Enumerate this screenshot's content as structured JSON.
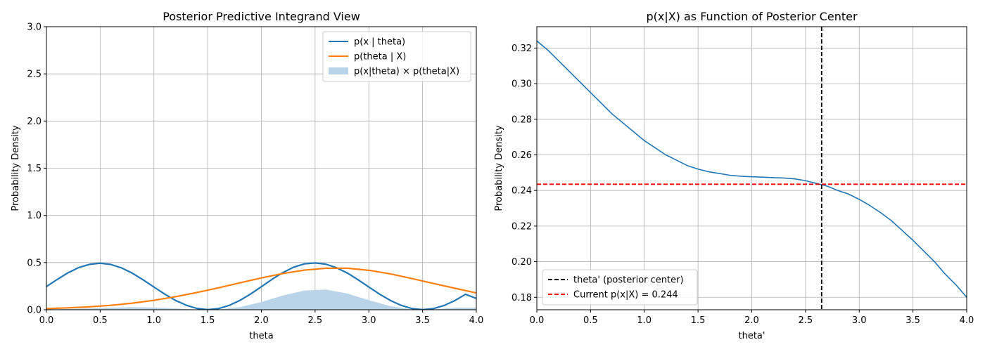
{
  "chart_data": [
    {
      "type": "line",
      "title": "Posterior Predictive Integrand View",
      "xlabel": "theta",
      "ylabel": "Probability Density",
      "xlim": [
        0.0,
        4.0
      ],
      "ylim": [
        0.0,
        3.0
      ],
      "xticks": [
        "0.0",
        "0.5",
        "1.0",
        "1.5",
        "2.0",
        "2.5",
        "3.0",
        "3.5",
        "4.0"
      ],
      "yticks": [
        "0.0",
        "0.5",
        "1.0",
        "1.5",
        "2.0",
        "2.5",
        "3.0"
      ],
      "grid": true,
      "legend_position": "top-right",
      "series": [
        {
          "name": "p(x | theta)",
          "kind": "line",
          "color": "#1f77b4",
          "x": [
            0,
            0.1,
            0.2,
            0.3,
            0.4,
            0.5,
            0.6,
            0.7,
            0.8,
            0.9,
            1.0,
            1.1,
            1.2,
            1.3,
            1.4,
            1.5,
            1.6,
            1.7,
            1.8,
            1.9,
            2.0,
            2.1,
            2.2,
            2.3,
            2.4,
            2.5,
            2.6,
            2.7,
            2.8,
            2.9,
            3.0,
            3.1,
            3.2,
            3.3,
            3.4,
            3.5,
            3.6,
            3.7,
            3.8,
            3.9,
            4.0
          ],
          "y": [
            0.246,
            0.321,
            0.391,
            0.447,
            0.481,
            0.493,
            0.48,
            0.443,
            0.387,
            0.317,
            0.241,
            0.166,
            0.1,
            0.048,
            0.014,
            0.001,
            0.012,
            0.046,
            0.099,
            0.167,
            0.244,
            0.323,
            0.394,
            0.451,
            0.486,
            0.496,
            0.483,
            0.445,
            0.389,
            0.318,
            0.241,
            0.165,
            0.099,
            0.047,
            0.013,
            0.001,
            0.012,
            0.045,
            0.097,
            0.164,
            0.12
          ]
        },
        {
          "name": "p(theta | X)",
          "kind": "line",
          "color": "#ff7f0e",
          "x": [
            0,
            0.2,
            0.4,
            0.6,
            0.8,
            1.0,
            1.2,
            1.4,
            1.6,
            1.8,
            2.0,
            2.2,
            2.4,
            2.6,
            2.8,
            3.0,
            3.2,
            3.4,
            3.6,
            3.8,
            4.0
          ],
          "y": [
            0.012,
            0.02,
            0.031,
            0.047,
            0.07,
            0.1,
            0.138,
            0.183,
            0.232,
            0.285,
            0.337,
            0.384,
            0.42,
            0.44,
            0.44,
            0.418,
            0.38,
            0.331,
            0.279,
            0.228,
            0.178
          ]
        },
        {
          "name": "p(x|theta) × p(theta|X)",
          "kind": "area",
          "color": "#b9d4e9",
          "x": [
            0,
            0.2,
            0.4,
            0.6,
            0.8,
            1.0,
            1.2,
            1.4,
            1.6,
            1.8,
            2.0,
            2.2,
            2.4,
            2.6,
            2.8,
            3.0,
            3.2,
            3.4,
            3.6,
            3.8,
            4.0
          ],
          "y": [
            0.003,
            0.008,
            0.015,
            0.022,
            0.027,
            0.024,
            0.014,
            0.003,
            0.003,
            0.028,
            0.082,
            0.151,
            0.204,
            0.214,
            0.172,
            0.101,
            0.038,
            0.004,
            0.003,
            0.022,
            0.021
          ]
        }
      ]
    },
    {
      "type": "line",
      "title": "p(x|X) as Function of Posterior Center",
      "xlabel": "theta'",
      "ylabel": "Probability Density",
      "xlim": [
        0.0,
        4.0
      ],
      "ylim": [
        0.173,
        0.332
      ],
      "xticks": [
        "0.0",
        "0.5",
        "1.0",
        "1.5",
        "2.0",
        "2.5",
        "3.0",
        "3.5",
        "4.0"
      ],
      "yticks": [
        "0.18",
        "0.20",
        "0.22",
        "0.24",
        "0.26",
        "0.28",
        "0.30",
        "0.32"
      ],
      "grid": true,
      "legend_position": "bottom-left",
      "series": [
        {
          "name": "",
          "kind": "line",
          "color": "#1f77b4",
          "x": [
            0,
            0.1,
            0.2,
            0.3,
            0.4,
            0.5,
            0.6,
            0.7,
            0.8,
            0.9,
            1.0,
            1.1,
            1.2,
            1.3,
            1.4,
            1.5,
            1.6,
            1.7,
            1.8,
            1.9,
            2.0,
            2.1,
            2.2,
            2.3,
            2.4,
            2.5,
            2.6,
            2.7,
            2.8,
            2.9,
            3.0,
            3.1,
            3.2,
            3.3,
            3.4,
            3.5,
            3.6,
            3.7,
            3.8,
            3.9,
            4.0
          ],
          "y": [
            0.324,
            0.319,
            0.313,
            0.307,
            0.301,
            0.295,
            0.289,
            0.283,
            0.278,
            0.273,
            0.268,
            0.264,
            0.26,
            0.257,
            0.254,
            0.252,
            0.2505,
            0.2495,
            0.2485,
            0.248,
            0.2477,
            0.2475,
            0.2472,
            0.247,
            0.2465,
            0.2455,
            0.244,
            0.2425,
            0.24,
            0.238,
            0.235,
            0.2315,
            0.2275,
            0.223,
            0.2175,
            0.212,
            0.206,
            0.2,
            0.193,
            0.187,
            0.18
          ]
        },
        {
          "name": "theta' (posterior center)",
          "kind": "vline",
          "color": "#000000",
          "x": 2.65
        },
        {
          "name": "Current p(x|X) = 0.244",
          "kind": "hline",
          "color": "#ff0000",
          "y": 0.2435
        }
      ]
    }
  ]
}
